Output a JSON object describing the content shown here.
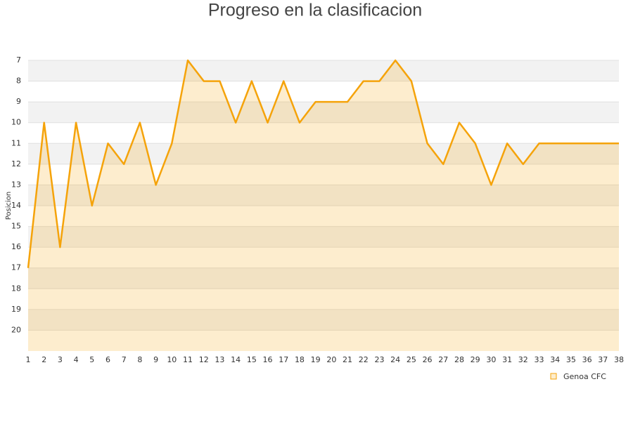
{
  "chart_data": {
    "type": "area-line",
    "title": "Progreso en la clasificacion",
    "y_label": "Posicion",
    "x": [
      1,
      2,
      3,
      4,
      5,
      6,
      7,
      8,
      9,
      10,
      11,
      12,
      13,
      14,
      15,
      16,
      17,
      18,
      19,
      20,
      21,
      22,
      23,
      24,
      25,
      26,
      27,
      28,
      29,
      30,
      31,
      32,
      33,
      34,
      35,
      36,
      37,
      38
    ],
    "series": [
      {
        "name": "Genoa CFC",
        "color": "#f5a30a",
        "values": [
          17,
          10,
          16,
          10,
          14,
          11,
          12,
          10,
          13,
          11,
          7,
          8,
          8,
          10,
          8,
          10,
          8,
          10,
          9,
          9,
          9,
          8,
          8,
          7,
          8,
          11,
          12,
          10,
          11,
          13,
          11,
          12,
          11,
          11,
          11,
          11,
          11,
          11
        ]
      }
    ],
    "xlim": [
      1,
      38
    ],
    "xticks": [
      1,
      2,
      3,
      4,
      5,
      6,
      7,
      8,
      9,
      10,
      11,
      12,
      13,
      14,
      15,
      16,
      17,
      18,
      19,
      20,
      21,
      22,
      23,
      24,
      25,
      26,
      27,
      28,
      29,
      30,
      31,
      32,
      33,
      34,
      35,
      36,
      37,
      38
    ],
    "ylim": [
      21,
      7
    ],
    "yticks": [
      7,
      8,
      9,
      10,
      11,
      12,
      13,
      14,
      15,
      16,
      17,
      18,
      19,
      20
    ],
    "grid": true,
    "legend": "bottom-right"
  }
}
